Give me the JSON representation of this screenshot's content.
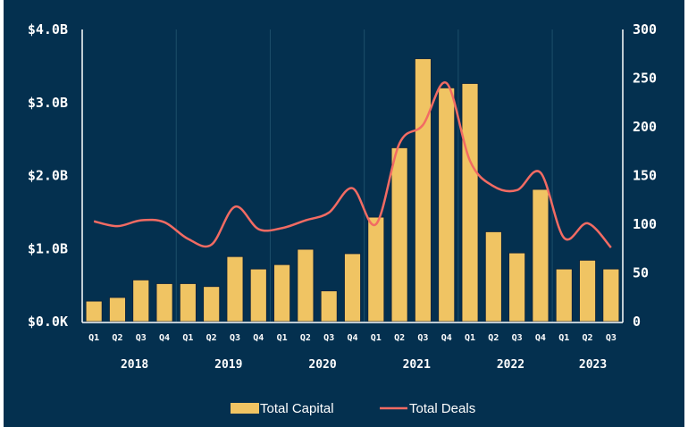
{
  "chart_data": {
    "type": "bar+line",
    "categories": [
      "Q1",
      "Q2",
      "Q3",
      "Q4",
      "Q1",
      "Q2",
      "Q3",
      "Q4",
      "Q1",
      "Q2",
      "Q3",
      "Q4",
      "Q1",
      "Q2",
      "Q3",
      "Q4",
      "Q1",
      "Q2",
      "Q3",
      "Q4",
      "Q1",
      "Q2",
      "Q3"
    ],
    "years": [
      {
        "label": "2018",
        "quarters": 4
      },
      {
        "label": "2019",
        "quarters": 4
      },
      {
        "label": "2020",
        "quarters": 4
      },
      {
        "label": "2021",
        "quarters": 4
      },
      {
        "label": "2022",
        "quarters": 4
      },
      {
        "label": "2023",
        "quarters": 3
      }
    ],
    "series": [
      {
        "name": "Total Capital",
        "type": "bar",
        "axis": "left",
        "unit": "USD billions",
        "color": "#f0c463",
        "values": [
          0.28,
          0.33,
          0.57,
          0.52,
          0.52,
          0.48,
          0.89,
          0.72,
          0.78,
          0.99,
          0.42,
          0.93,
          1.43,
          2.38,
          3.6,
          3.2,
          3.26,
          1.23,
          0.94,
          1.81,
          0.72,
          0.84,
          0.72
        ]
      },
      {
        "name": "Total Deals",
        "type": "line",
        "axis": "right",
        "color": "#f26b63",
        "values": [
          103,
          98,
          104,
          102,
          85,
          79,
          118,
          95,
          96,
          104,
          112,
          137,
          100,
          183,
          202,
          245,
          165,
          139,
          135,
          153,
          86,
          101,
          76
        ]
      }
    ],
    "left_axis": {
      "ticks": [
        "$0.0K",
        "$1.0B",
        "$2.0B",
        "$3.0B",
        "$4.0B"
      ],
      "range": [
        0,
        4
      ]
    },
    "right_axis": {
      "ticks": [
        "0",
        "50",
        "100",
        "150",
        "200",
        "250",
        "300"
      ],
      "range": [
        0,
        300
      ]
    },
    "legend": {
      "position": "bottom",
      "items": [
        "Total Capital",
        "Total Deals"
      ]
    },
    "grid": false
  }
}
